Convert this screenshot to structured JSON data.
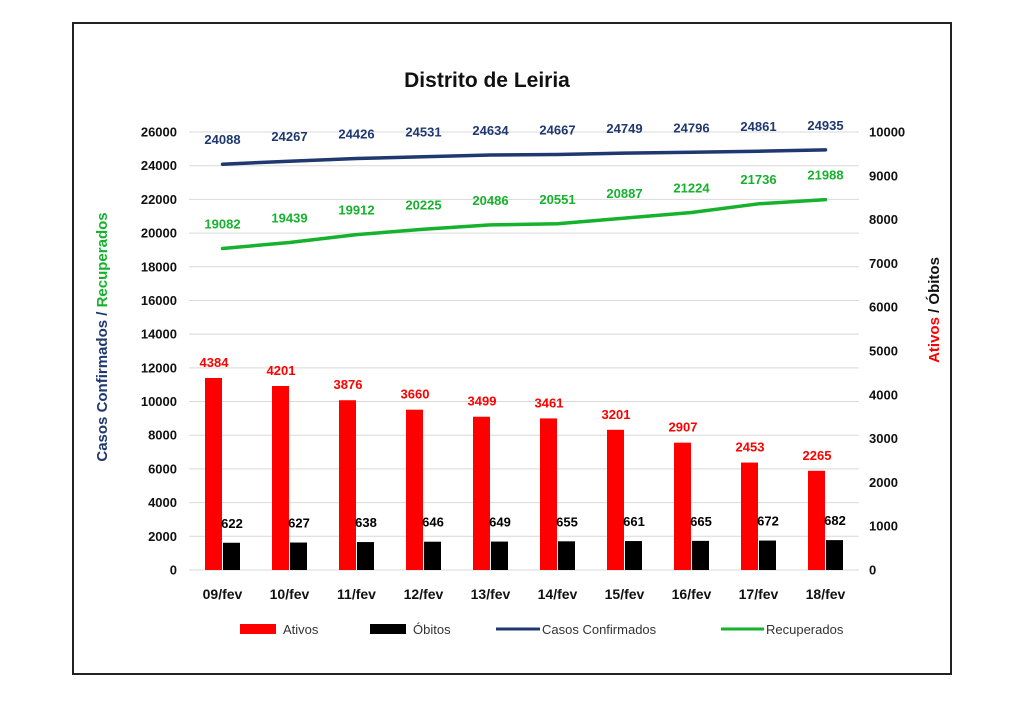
{
  "chart_data": {
    "type": "bar",
    "title": "Distrito de Leiria",
    "categories": [
      "09/fev",
      "10/fev",
      "11/fev",
      "12/fev",
      "13/fev",
      "14/fev",
      "15/fev",
      "16/fev",
      "17/fev",
      "18/fev"
    ],
    "series": [
      {
        "name": "Ativos",
        "type": "bar",
        "axis": "right",
        "color": "#ff0000",
        "values": [
          4384,
          4201,
          3876,
          3660,
          3499,
          3461,
          3201,
          2907,
          2453,
          2265
        ]
      },
      {
        "name": "Óbitos",
        "type": "bar",
        "axis": "right",
        "color": "#000000",
        "values": [
          622,
          627,
          638,
          646,
          649,
          655,
          661,
          665,
          672,
          682
        ]
      },
      {
        "name": "Casos Confirmados",
        "type": "line",
        "axis": "left",
        "color": "#1f3870",
        "values": [
          24088,
          24267,
          24426,
          24531,
          24634,
          24667,
          24749,
          24796,
          24861,
          24935
        ]
      },
      {
        "name": "Recuperados",
        "type": "line",
        "axis": "left",
        "color": "#16b22e",
        "values": [
          19082,
          19439,
          19912,
          20225,
          20486,
          20551,
          20887,
          21224,
          21736,
          21988
        ]
      }
    ],
    "y_left": {
      "label_part1": "Casos Confirmados",
      "label_sep": " / ",
      "label_part2": "Recuperados",
      "range": [
        0,
        26000
      ],
      "ticks": [
        0,
        2000,
        4000,
        6000,
        8000,
        10000,
        12000,
        14000,
        16000,
        18000,
        20000,
        22000,
        24000,
        26000
      ]
    },
    "y_right": {
      "label_part1": "Ativos",
      "label_sep": " / ",
      "label_part2": "Óbitos",
      "range": [
        0,
        10000
      ],
      "ticks": [
        0,
        1000,
        2000,
        3000,
        4000,
        5000,
        6000,
        7000,
        8000,
        9000,
        10000
      ]
    },
    "grid": true,
    "legend_position": "bottom",
    "colors": {
      "confirmados": "#1f3870",
      "recuperados": "#16b22e",
      "ativos": "#ff0000",
      "obitos": "#000000",
      "grid": "#d9d9d9"
    }
  }
}
